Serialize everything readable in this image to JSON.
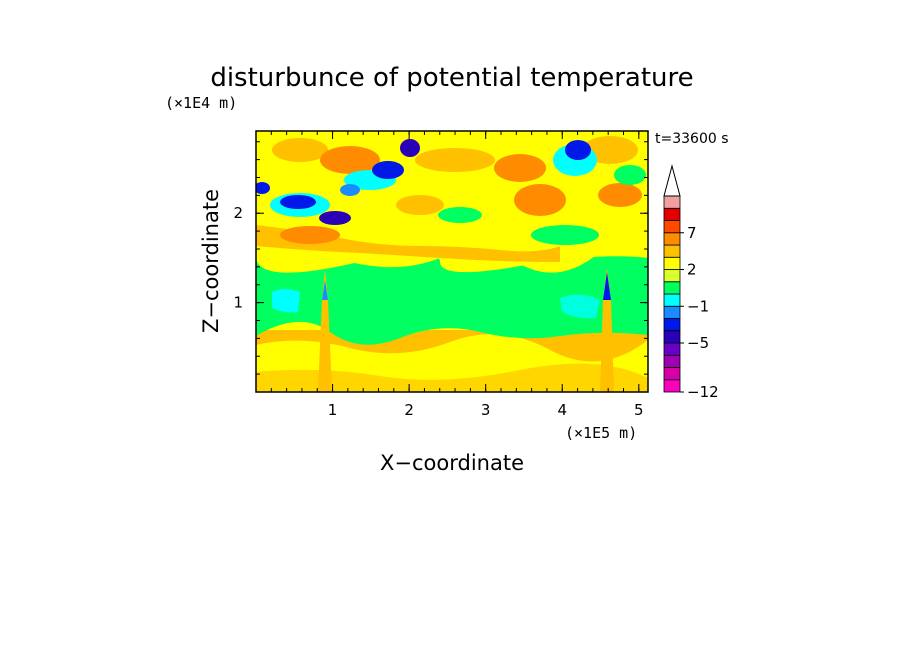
{
  "chart_data": {
    "type": "heatmap",
    "title": "disturbunce of potential temperature",
    "time_label": "t=33600 s",
    "xlabel": "X−coordinate",
    "ylabel": "Z−coordinate",
    "x_unit": "(×1E5 m)",
    "y_unit": "(×1E4 m)",
    "xlim": [
      0,
      5.12
    ],
    "ylim": [
      0,
      2.92
    ],
    "x_ticks": [
      1,
      2,
      3,
      4,
      5
    ],
    "y_ticks": [
      1,
      2
    ],
    "x_tick_labels": [
      "1",
      "2",
      "3",
      "4",
      "5"
    ],
    "y_tick_labels": [
      "1",
      "2"
    ],
    "colorbar": {
      "labels": [
        "7",
        "2",
        "−1",
        "−5",
        "−12"
      ],
      "label_values": [
        7,
        2,
        -1,
        -5,
        -12
      ],
      "levels": [
        -12,
        -10,
        -8,
        -6,
        -5,
        -4,
        -3,
        -1,
        0,
        1,
        2,
        3,
        5,
        7,
        9,
        11
      ],
      "colors": [
        "#ff00c0",
        "#d400a8",
        "#a000b0",
        "#6a00c8",
        "#2a00b8",
        "#0018e8",
        "#1a8cff",
        "#00ffff",
        "#00ff60",
        "#d8ff30",
        "#ffff00",
        "#ffc000",
        "#ff8c00",
        "#ff4800",
        "#e40000",
        "#f0a0a0"
      ],
      "extend": "max"
    },
    "bands": [
      {
        "z": [
          0.0,
          0.35
        ],
        "level": "yellow",
        "approx_value": 1.5
      },
      {
        "z": [
          0.35,
          0.7
        ],
        "level": "orange-yellow",
        "approx_value": 2.5
      },
      {
        "z": [
          0.7,
          1.35
        ],
        "level": "green",
        "approx_value": 0
      },
      {
        "z": [
          1.35,
          1.85
        ],
        "level": "yellow-orange",
        "approx_value": 2
      },
      {
        "z": [
          1.85,
          2.92
        ],
        "level": "mixed",
        "approx_value": 0
      }
    ],
    "features": [
      {
        "type": "mountain-wave column",
        "x": 0.9,
        "z_range": [
          0.0,
          1.2
        ]
      },
      {
        "type": "mountain-wave column",
        "x": 4.57,
        "z_range": [
          0.0,
          1.2
        ]
      },
      {
        "type": "cold anomalies",
        "x_range": [
          0.2,
          4.5
        ],
        "z_range": [
          2.0,
          2.92
        ],
        "min_value": -5
      },
      {
        "type": "warm anomalies",
        "x_range": [
          0.3,
          5.0
        ],
        "z_range": [
          1.6,
          2.92
        ],
        "max_value": 7
      }
    ]
  }
}
